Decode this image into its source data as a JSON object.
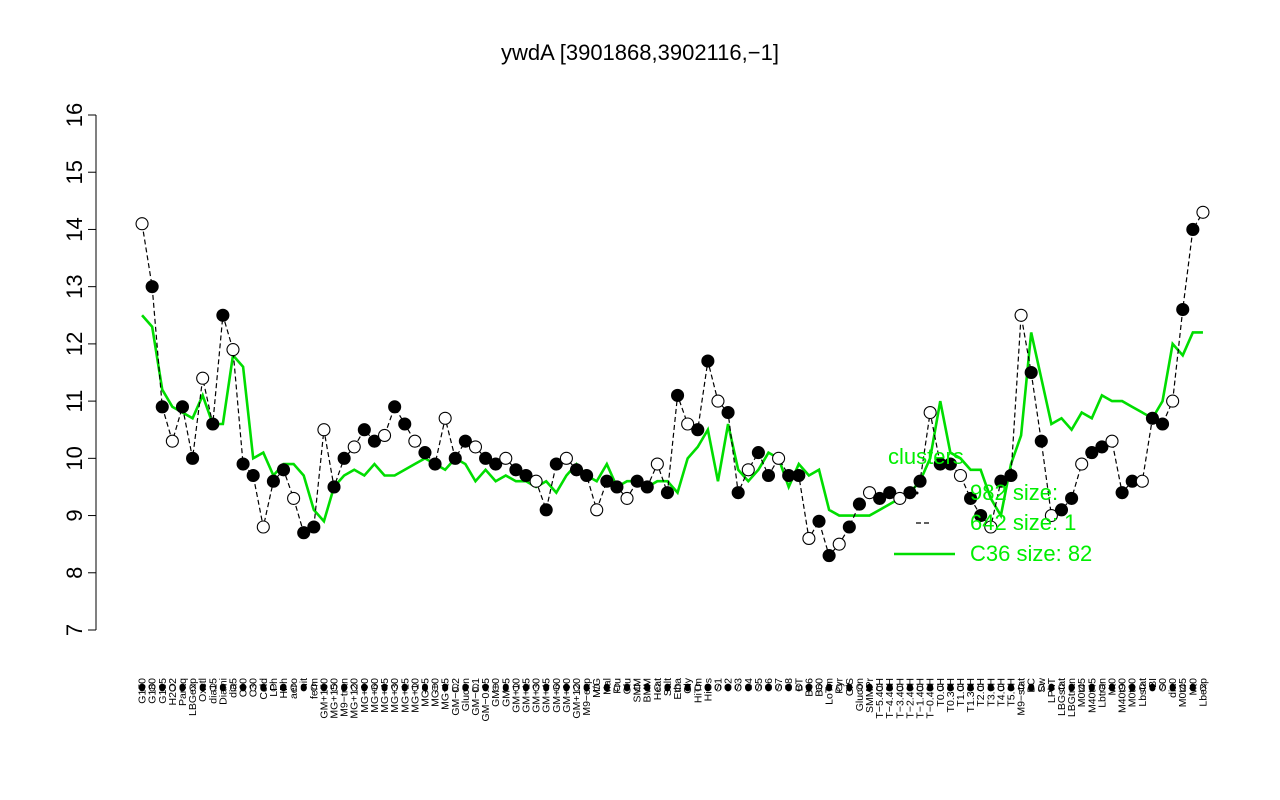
{
  "chart_data": {
    "type": "line",
    "title": "ywdA [3901868,3902116,−1]",
    "ylim": [
      7,
      16
    ],
    "yticks": [
      7,
      8,
      9,
      10,
      11,
      12,
      13,
      14,
      15,
      16
    ],
    "x_tick_labels": [
      "G150",
      "G180",
      "G135",
      "H2O2",
      "Paraq",
      "LBGexp",
      "Oxctl",
      "dia15",
      "Diami",
      "dia5",
      "C90",
      "C30",
      "Cold",
      "LPh",
      "HPh",
      "aero",
      "nit",
      "ferm",
      "GM+150",
      "MG+150",
      "M9−tran",
      "MG+120",
      "MG+90",
      "MG+60",
      "MG+45",
      "MG+30",
      "MG+15",
      "MG+10",
      "MG+5",
      "MG+0",
      "MG+t5",
      "GM−0.2",
      "Glucon",
      "GM−0.1",
      "GM−0.05",
      "GM+0",
      "GM+5",
      "GM+10",
      "GM+15",
      "GM+30",
      "GM+45",
      "GM+60",
      "GM+90",
      "GM+120",
      "M9−exp",
      "M/G",
      "Mal",
      "Fru",
      "Glu",
      "SMM",
      "BMM",
      "Heat",
      "Salt",
      "Etha",
      "Gly",
      "HiTm",
      "HiOs",
      "S1",
      "S2",
      "S3",
      "S4",
      "S5",
      "S6",
      "S7",
      "S8",
      "BT",
      "B36",
      "B60",
      "LoTm",
      "Pyr",
      "G/S",
      "Glucon",
      "SMMPr",
      "T−5.40H",
      "T−4.40H",
      "T−3.40H",
      "T−2.40H",
      "T−1.40H",
      "T−0.40H",
      "T0.0H",
      "T0.30H",
      "T1.0H",
      "T1.30H",
      "T2.0H",
      "T3.0H",
      "T4.0H",
      "T5.0H",
      "M9−stat",
      "BC",
      "Sw",
      "LPhT",
      "LBGstat",
      "LBGtran",
      "M0t45",
      "M40t45",
      "Lbtran",
      "Mt0",
      "M40t90",
      "M0t90",
      "Lbstat",
      "BI",
      "S0",
      "dia0",
      "M0t45",
      "Mt0",
      "Lbexp"
    ],
    "legend_title": "clusters",
    "legend_entries": [
      "982 size: ",
      "642 size: 1",
      "C36 size: 82"
    ],
    "series": [
      {
        "name": "C36 size: 82",
        "color": "#00dd00",
        "values": [
          12.5,
          12.3,
          11.2,
          10.9,
          10.8,
          10.7,
          11.1,
          10.6,
          10.6,
          11.8,
          11.6,
          10.0,
          10.1,
          9.7,
          9.9,
          9.9,
          9.7,
          9.1,
          8.9,
          9.5,
          9.7,
          9.8,
          9.7,
          9.9,
          9.7,
          9.7,
          9.8,
          9.9,
          10.0,
          9.9,
          9.8,
          10.0,
          9.9,
          9.6,
          9.8,
          9.6,
          9.7,
          9.6,
          9.6,
          9.5,
          9.6,
          9.4,
          9.7,
          9.9,
          9.7,
          9.6,
          9.9,
          9.5,
          9.6,
          9.6,
          9.5,
          9.6,
          9.6,
          9.4,
          10.0,
          10.2,
          10.5,
          9.6,
          10.6,
          9.8,
          9.6,
          9.8,
          10.1,
          10.0,
          9.5,
          9.9,
          9.7,
          9.8,
          9.1,
          9.0,
          9.0,
          9.0,
          9.0,
          9.1,
          9.2,
          9.3,
          9.4,
          9.6,
          10.0,
          11.0,
          10.1,
          10.0,
          9.8,
          9.8,
          9.3,
          9.0,
          9.9,
          10.4,
          12.2,
          11.4,
          10.6,
          10.7,
          10.5,
          10.8,
          10.7,
          11.1,
          11.0,
          11.0,
          10.9,
          10.8,
          10.7,
          11.0,
          12.0,
          11.8,
          12.2,
          12.2
        ]
      },
      {
        "name": "",
        "color": "#000000",
        "dash": true,
        "values": [
          14.1,
          13.0,
          10.9,
          10.3,
          10.9,
          10.0,
          11.4,
          10.6,
          12.5,
          11.9,
          9.9,
          9.7,
          8.8,
          9.6,
          9.8,
          9.3,
          8.7,
          8.8,
          10.5,
          9.5,
          10.0,
          10.2,
          10.5,
          10.3,
          10.4,
          10.9,
          10.6,
          10.3,
          10.1,
          9.9,
          10.7,
          10.0,
          10.3,
          10.2,
          10.0,
          9.9,
          10.0,
          9.8,
          9.7,
          9.6,
          9.1,
          9.9,
          10.0,
          9.8,
          9.7,
          9.1,
          9.6,
          9.5,
          9.3,
          9.6,
          9.5,
          9.9,
          9.4,
          11.1,
          10.6,
          10.5,
          11.7,
          11.0,
          10.8,
          9.4,
          9.8,
          10.1,
          9.7,
          10.0,
          9.7,
          9.7,
          8.6,
          8.9,
          8.3,
          8.5,
          8.8,
          9.2,
          9.4,
          9.3,
          9.4,
          9.3,
          9.4,
          9.6,
          10.8,
          9.9,
          9.9,
          9.7,
          9.3,
          9.0,
          8.8,
          9.6,
          9.7,
          12.5,
          11.5,
          10.3,
          9.0,
          9.1,
          9.3,
          9.9,
          10.1,
          10.2,
          10.3,
          9.4,
          9.6,
          9.6,
          10.7,
          10.6,
          11.0,
          12.6,
          14.0,
          14.3
        ]
      }
    ]
  }
}
